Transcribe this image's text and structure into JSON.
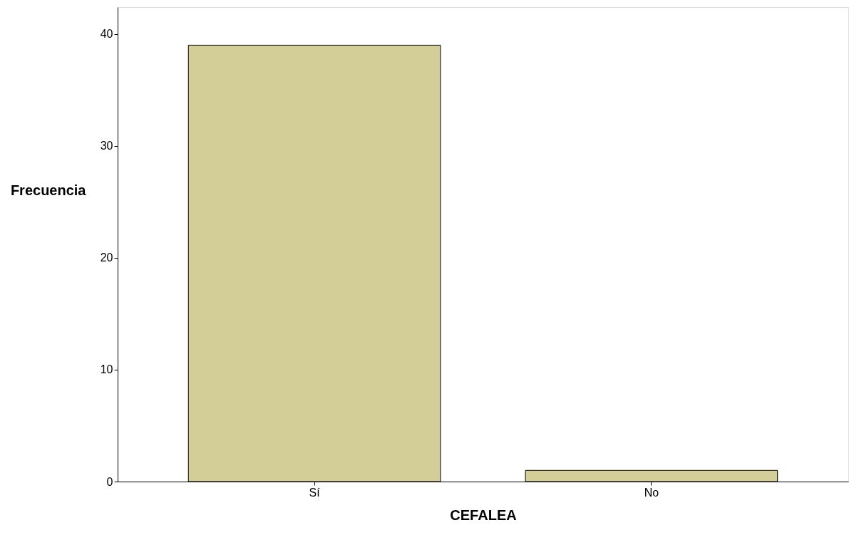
{
  "chart_data": {
    "type": "bar",
    "xlabel": "CEFALEA",
    "ylabel": "Frecuencia",
    "categories": [
      "Sí",
      "No"
    ],
    "values": [
      39,
      1
    ],
    "color": "#d3ce97",
    "ylim": [
      0,
      42.4
    ],
    "yticks": [
      0,
      10,
      20,
      30,
      40
    ],
    "grid": false
  }
}
